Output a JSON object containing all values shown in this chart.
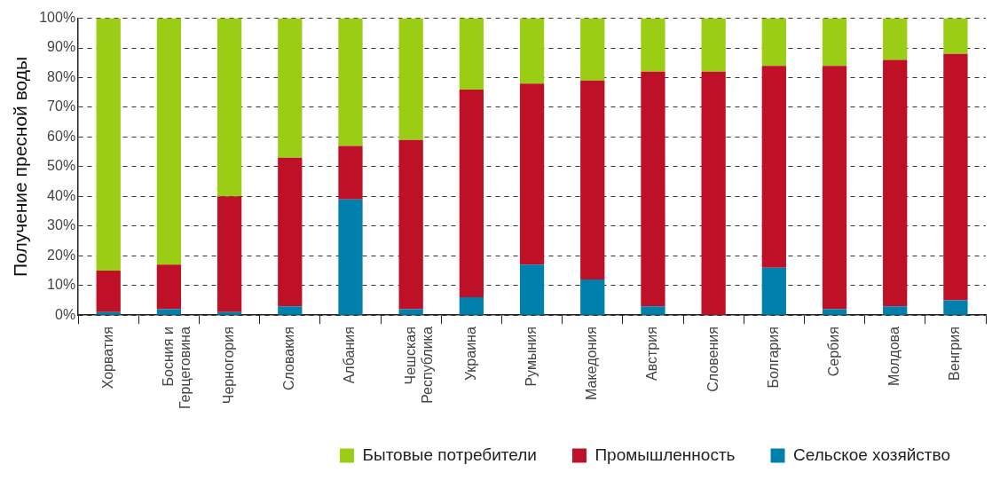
{
  "chart_data": {
    "type": "bar",
    "stacked": true,
    "ylabel": "Получение пресной воды",
    "categories": [
      "Хорватия",
      "Босния и\nГерцеговина",
      "Черногория",
      "Словакия",
      "Албания",
      "Чешская\nРеспублика",
      "Украина",
      "Румыния",
      "Македония",
      "Австрия",
      "Словения",
      "Болгария",
      "Сербия",
      "Молдова",
      "Венгрия"
    ],
    "series": [
      {
        "name": "Сельское хозяйство",
        "color": "#0081ad",
        "values": [
          1,
          2,
          1,
          3,
          39,
          2,
          6,
          17,
          12,
          3,
          0,
          16,
          2,
          3,
          5
        ]
      },
      {
        "name": "Промышленность",
        "color": "#be1128",
        "values": [
          14,
          15,
          39,
          50,
          18,
          57,
          70,
          61,
          67,
          79,
          82,
          68,
          82,
          83,
          83
        ]
      },
      {
        "name": "Бытовые потребители",
        "color": "#9acd14",
        "values": [
          85,
          83,
          60,
          47,
          43,
          41,
          24,
          22,
          21,
          18,
          18,
          16,
          16,
          14,
          12
        ]
      }
    ],
    "ylim": [
      0,
      100
    ],
    "yticks": [
      {
        "value": 0,
        "label": "0%"
      },
      {
        "value": 10,
        "label": "10%"
      },
      {
        "value": 20,
        "label": "20%"
      },
      {
        "value": 30,
        "label": "30%"
      },
      {
        "value": 40,
        "label": "40%"
      },
      {
        "value": 50,
        "label": "50%"
      },
      {
        "value": 60,
        "label": "60%"
      },
      {
        "value": 70,
        "label": "70%"
      },
      {
        "value": 80,
        "label": "80%"
      },
      {
        "value": 90,
        "label": "90%"
      },
      {
        "value": 100,
        "label": "100%"
      }
    ],
    "grid": "y",
    "legend": "bottom right"
  }
}
